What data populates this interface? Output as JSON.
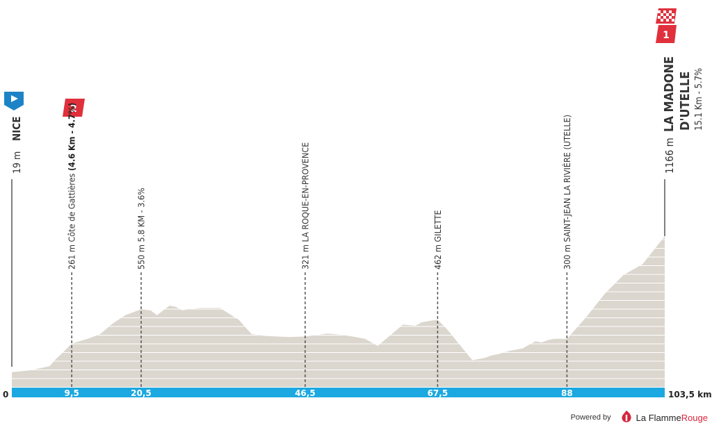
{
  "colors": {
    "profile_fill": "#dbd6ce",
    "profile_stripe": "#ffffff",
    "baseline_bar": "#1ca8e0",
    "start_flag": "#1c84c6",
    "climb_flag": "#e0303c",
    "brand_red": "#d7263d"
  },
  "start": {
    "name": "NICE",
    "altitude": "19 m",
    "icon": "play-flag-icon"
  },
  "finish": {
    "name_line1": "LA MADONE",
    "name_line2": "D'UTELLE",
    "altitude": "1166 m",
    "climb_info": "15.1 Km - 5.7%",
    "category": "1",
    "icon": "checkered-flag-icon"
  },
  "waypoints": [
    {
      "km_label": "9,5",
      "text_plain": "261 m Côte de Gattières ",
      "text_bold": "(4.6 Km - 4.7%)",
      "category": "2"
    },
    {
      "km_label": "20,5",
      "text_plain": "550 m 5.8 KM - 3.6%",
      "text_bold": ""
    },
    {
      "km_label": "46,5",
      "text_plain": "321 m LA ROQUE-EN-PROVENCE",
      "text_bold": ""
    },
    {
      "km_label": "67,5",
      "text_plain": "462 m GILETTE",
      "text_bold": ""
    },
    {
      "km_label": "88",
      "text_plain": "300 m SAINT-JEAN LA RIVIÈRE (UTELLE)",
      "text_bold": ""
    }
  ],
  "axis": {
    "start_label": "0",
    "end_label": "103,5 km"
  },
  "footer": {
    "powered_by": "Powered by",
    "brand_part1": "La Flamme",
    "brand_part2": "Rouge"
  },
  "chart_data": {
    "type": "area",
    "xlabel": "",
    "ylabel": "",
    "xlim": [
      0,
      103.5
    ],
    "ylim": [
      0,
      1166
    ],
    "x": [
      0,
      3,
      6,
      7,
      8,
      9.5,
      12,
      14,
      16,
      18,
      20.5,
      22,
      23,
      25,
      26,
      27,
      28,
      30,
      33,
      36,
      38,
      40,
      42,
      44,
      46.5,
      48,
      50,
      52,
      54,
      56,
      58,
      60,
      62,
      64,
      65,
      66,
      67.5,
      69,
      71,
      73,
      75,
      76,
      77,
      79,
      81,
      83,
      84,
      85,
      86,
      88,
      91,
      94,
      97,
      100,
      103.5
    ],
    "values": [
      19,
      35,
      70,
      130,
      180,
      261,
      300,
      340,
      430,
      500,
      550,
      540,
      500,
      580,
      570,
      540,
      550,
      560,
      560,
      460,
      340,
      325,
      320,
      315,
      321,
      330,
      345,
      335,
      320,
      300,
      240,
      330,
      420,
      410,
      440,
      450,
      462,
      380,
      250,
      120,
      140,
      160,
      170,
      200,
      220,
      280,
      270,
      290,
      300,
      300,
      480,
      680,
      840,
      930,
      1166
    ]
  }
}
